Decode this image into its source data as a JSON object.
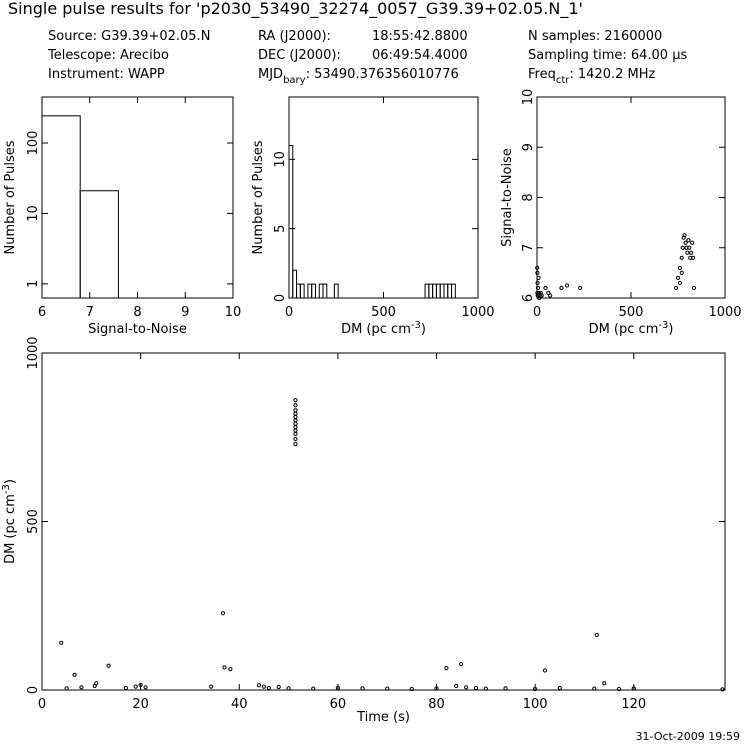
{
  "header": {
    "title": "Single pulse results for 'p2030_53490_32274_0057_G39.39+02.05.N_1'",
    "source": "Source: G39.39+02.05.N",
    "telescope": "Telescope: Arecibo",
    "instrument": "Instrument: WAPP",
    "ra_label": "RA (J2000):",
    "ra_value": "18:55:42.8800",
    "dec_label": "DEC (J2000):",
    "dec_value": "06:49:54.4000",
    "mjd": [
      "MJD",
      "bary",
      ": 53490.376356010776"
    ],
    "nsamples": "N samples: 2160000",
    "sampling": "Sampling time: 64.00 μs",
    "freq": [
      "Freq",
      "ctr",
      ": 1420.2 MHz"
    ]
  },
  "footer": "31-Oct-2009 19:59",
  "chart_data": [
    {
      "type": "histogram",
      "xlabel": [
        "Signal-to-Noise"
      ],
      "ylabel": [
        "Number of Pulses"
      ],
      "bins": [
        6,
        6.8,
        7.6
      ],
      "counts": [
        243,
        21
      ],
      "xlim": [
        6,
        10
      ],
      "xticks": [
        6,
        7,
        8,
        9,
        10
      ],
      "ylim": [
        0.63,
        450
      ],
      "yticks": [
        1,
        10,
        100
      ],
      "ylog": true,
      "color": "#000000"
    },
    {
      "type": "histogram",
      "xlabel": [
        "DM (pc cm",
        "-3",
        ")"
      ],
      "ylabel": [
        "Number of Pulses"
      ],
      "bins": [
        0,
        20,
        40,
        60,
        80,
        100,
        120,
        140,
        160,
        180,
        200,
        220,
        240,
        260,
        280,
        300,
        320,
        340,
        360,
        380,
        400,
        420,
        440,
        460,
        480,
        500,
        520,
        540,
        560,
        580,
        600,
        620,
        640,
        660,
        680,
        700,
        720,
        740,
        760,
        780,
        800,
        820,
        840,
        860,
        880,
        900
      ],
      "counts": [
        11,
        2,
        1,
        1,
        0,
        1,
        1,
        0,
        1,
        1,
        0,
        0,
        1,
        0,
        0,
        0,
        0,
        0,
        0,
        0,
        0,
        0,
        0,
        0,
        0,
        0,
        0,
        0,
        0,
        0,
        0,
        0,
        0,
        0,
        0,
        0,
        1,
        1,
        1,
        1,
        1,
        1,
        1,
        1,
        0
      ],
      "xlim": [
        0,
        1000
      ],
      "xticks": [
        0,
        500,
        1000
      ],
      "ylim": [
        0,
        14.5
      ],
      "yticks": [
        0,
        5,
        10
      ],
      "ylog": false,
      "color": "#000000"
    },
    {
      "type": "scatter",
      "xlabel": [
        "DM (pc cm",
        "-3",
        ")"
      ],
      "ylabel": [
        "Signal-to-Noise"
      ],
      "x": [
        1,
        2,
        3,
        2,
        4,
        5,
        8,
        10,
        12,
        15,
        20,
        25,
        45,
        60,
        70,
        130,
        160,
        230,
        740,
        750,
        760,
        770,
        775,
        780,
        785,
        790,
        795,
        800,
        805,
        810,
        815,
        820,
        825,
        830,
        835,
        760,
        770
      ],
      "y": [
        6.6,
        6.5,
        6.3,
        6.1,
        6.05,
        6.2,
        6.4,
        6.1,
        6.0,
        6.05,
        6.1,
        6.05,
        6.2,
        6.1,
        6.05,
        6.2,
        6.25,
        6.2,
        6.2,
        6.4,
        6.6,
        6.8,
        7.0,
        7.2,
        7.25,
        7.1,
        7.0,
        6.9,
        7.15,
        7.0,
        6.8,
        6.9,
        7.1,
        6.8,
        6.2,
        6.3,
        6.5
      ],
      "xlim": [
        0,
        1000
      ],
      "xticks": [
        0,
        500,
        1000
      ],
      "ylim": [
        6,
        10
      ],
      "yticks": [
        6,
        7,
        8,
        9,
        10
      ],
      "ylog": false,
      "color": "#000000"
    },
    {
      "type": "scatter",
      "xlabel": [
        "Time (s)"
      ],
      "ylabel": [
        "DM (pc cm",
        "-3",
        ")"
      ],
      "x": [
        5,
        8,
        10.7,
        11,
        17,
        19,
        20,
        21,
        44,
        45,
        46,
        48,
        50,
        55,
        60,
        65,
        70,
        75,
        80,
        84,
        86,
        88,
        90,
        94,
        100,
        105,
        112,
        117,
        120,
        138,
        51.4,
        51.4,
        51.4,
        51.4,
        51.4,
        51.4,
        51.4,
        51.4,
        51.4,
        51.4,
        51.4,
        51.4,
        3.9,
        6.6,
        13.5,
        36.7,
        37,
        38.2,
        34.3,
        82,
        85,
        102,
        112.5,
        114
      ],
      "y": [
        5,
        8,
        12,
        20,
        6,
        10,
        15,
        8,
        14,
        10,
        6,
        9,
        5,
        4,
        6,
        5,
        4,
        3,
        5,
        12,
        8,
        6,
        4,
        5,
        3,
        6,
        4,
        3,
        5,
        2,
        730,
        745,
        760,
        770,
        780,
        790,
        800,
        810,
        820,
        830,
        845,
        860,
        140,
        45,
        72,
        228,
        67,
        62,
        10,
        65,
        77,
        58,
        163,
        20
      ],
      "xlim": [
        0,
        138.5
      ],
      "xticks": [
        0,
        20,
        40,
        60,
        80,
        100,
        120
      ],
      "ylim": [
        0,
        1000
      ],
      "yticks": [
        0,
        500,
        1000
      ],
      "ylog": false,
      "color": "#000000"
    }
  ]
}
